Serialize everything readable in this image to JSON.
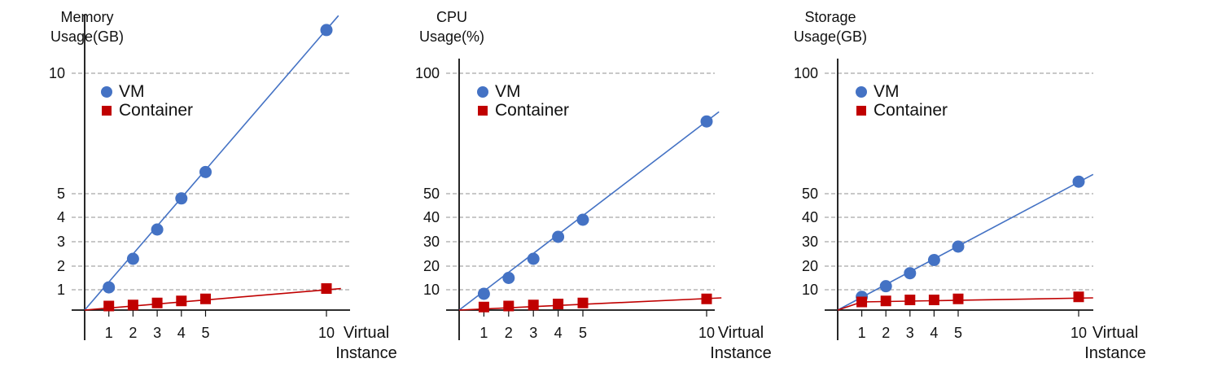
{
  "chart_data": [
    {
      "type": "line",
      "ylabel": [
        "Memory",
        "Usage(GB)"
      ],
      "xlabel": [
        "Virtual",
        "Instance"
      ],
      "x_ticks": [
        1,
        2,
        3,
        4,
        5,
        10
      ],
      "y_ticks": [
        1,
        2,
        3,
        4,
        5,
        10
      ],
      "ylim": [
        0,
        12
      ],
      "grid": "horizontal dashed",
      "legend_position": "top-left",
      "series": [
        {
          "name": "VM",
          "color": "#4472C4",
          "marker": "circle",
          "points": [
            [
              1,
              1.1
            ],
            [
              2,
              2.3
            ],
            [
              3,
              3.5
            ],
            [
              4,
              4.8
            ],
            [
              5,
              5.9
            ],
            [
              10,
              11.8
            ]
          ],
          "fit": [
            [
              0,
              0
            ],
            [
              10.5,
              12.4
            ]
          ]
        },
        {
          "name": "Container",
          "color": "#C00000",
          "marker": "square",
          "points": [
            [
              1,
              0.2
            ],
            [
              2,
              0.25
            ],
            [
              3,
              0.35
            ],
            [
              4,
              0.45
            ],
            [
              5,
              0.55
            ],
            [
              10,
              1.05
            ]
          ],
          "fit": [
            [
              0,
              0
            ],
            [
              10.6,
              1.05
            ]
          ]
        }
      ]
    },
    {
      "type": "line",
      "ylabel": [
        "CPU",
        "Usage(%)"
      ],
      "xlabel": [
        "Virtual",
        "Instance"
      ],
      "x_ticks": [
        1,
        2,
        3,
        4,
        5,
        10
      ],
      "y_ticks": [
        10,
        20,
        30,
        40,
        50,
        100
      ],
      "ylim": [
        0,
        120
      ],
      "grid": "horizontal dashed",
      "legend_position": "top-left",
      "series": [
        {
          "name": "VM",
          "color": "#4472C4",
          "marker": "circle",
          "points": [
            [
              1,
              8
            ],
            [
              2,
              15
            ],
            [
              3,
              23
            ],
            [
              4,
              32
            ],
            [
              5,
              39
            ],
            [
              10,
              80
            ]
          ],
          "fit": [
            [
              0,
              0
            ],
            [
              10.5,
              84
            ]
          ]
        },
        {
          "name": "Container",
          "color": "#C00000",
          "marker": "square",
          "points": [
            [
              1,
              1.5
            ],
            [
              2,
              2
            ],
            [
              3,
              2.5
            ],
            [
              4,
              3
            ],
            [
              5,
              3.5
            ],
            [
              10,
              5.5
            ]
          ],
          "fit": [
            [
              0,
              0
            ],
            [
              10.6,
              6
            ]
          ]
        }
      ]
    },
    {
      "type": "line",
      "ylabel": [
        "Storage",
        "Usage(GB)"
      ],
      "xlabel": [
        "Virtual",
        "Instance"
      ],
      "x_ticks": [
        1,
        2,
        3,
        4,
        5,
        10
      ],
      "y_ticks": [
        10,
        20,
        30,
        40,
        50,
        100
      ],
      "ylim": [
        0,
        120
      ],
      "grid": "horizontal dashed",
      "legend_position": "top-left",
      "series": [
        {
          "name": "VM",
          "color": "#4472C4",
          "marker": "circle",
          "points": [
            [
              1,
              6.5
            ],
            [
              2,
              11.5
            ],
            [
              3,
              17
            ],
            [
              4,
              22.5
            ],
            [
              5,
              28
            ],
            [
              10,
              55
            ]
          ],
          "fit": [
            [
              0,
              0
            ],
            [
              10.6,
              58
            ]
          ]
        },
        {
          "name": "Container",
          "color": "#C00000",
          "marker": "square",
          "points": [
            [
              1,
              4
            ],
            [
              2,
              4.5
            ],
            [
              3,
              5
            ],
            [
              4,
              5
            ],
            [
              5,
              5.5
            ],
            [
              10,
              6.5
            ]
          ],
          "fit": [
            [
              0,
              0
            ],
            [
              1,
              4
            ],
            [
              10.6,
              6
            ]
          ]
        }
      ]
    }
  ]
}
